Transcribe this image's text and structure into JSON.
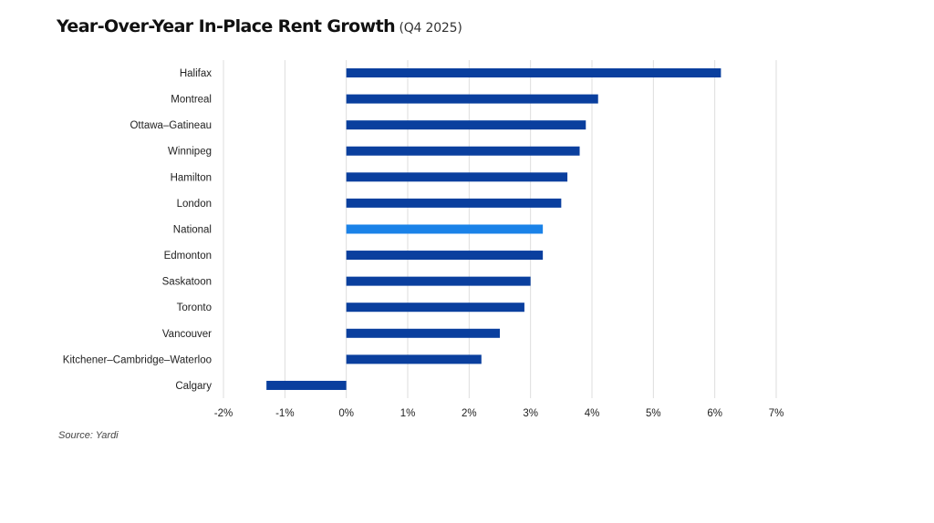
{
  "title": "Year-Over-Year In-Place Rent Growth",
  "subtitle": "(Q4 2025)",
  "source": "Source: Yardi",
  "colors": {
    "bar": "#0A3F9E",
    "highlight": "#1A82E8",
    "grid": "#DDDDDD"
  },
  "chart_data": {
    "type": "bar",
    "orientation": "horizontal",
    "title": "Year-Over-Year In-Place Rent Growth",
    "subtitle": "(Q4 2025)",
    "categories": [
      "Halifax",
      "Montreal",
      "Ottawa–Gatineau",
      "Winnipeg",
      "Hamilton",
      "London",
      "National",
      "Edmonton",
      "Saskatoon",
      "Toronto",
      "Vancouver",
      "Kitchener–Cambridge–Waterloo",
      "Calgary"
    ],
    "values": [
      6.1,
      4.1,
      3.9,
      3.8,
      3.6,
      3.5,
      3.2,
      3.2,
      3.0,
      2.9,
      2.5,
      2.2,
      -1.3
    ],
    "highlight_category": "National",
    "xlim": [
      -2,
      7
    ],
    "xticks": [
      -2,
      -1,
      0,
      1,
      2,
      3,
      4,
      5,
      6,
      7
    ],
    "xtick_labels": [
      "-2%",
      "-1%",
      "0%",
      "1%",
      "2%",
      "3%",
      "4%",
      "5%",
      "6%",
      "7%"
    ],
    "xlabel": "",
    "ylabel": "",
    "grid": "vertical",
    "legend": "none"
  }
}
